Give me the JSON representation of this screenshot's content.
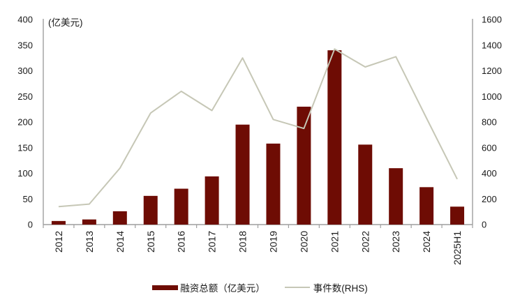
{
  "colors": {
    "bar": "#6e0c04",
    "line": "#c6c7b6",
    "axis": "#9e9e9e",
    "text": "#1a1a1a",
    "background": "#ffffff"
  },
  "chart_data": {
    "type": "combo_bar_line",
    "title": "",
    "categories": [
      "2012",
      "2013",
      "2014",
      "2015",
      "2016",
      "2017",
      "2018",
      "2019",
      "2020",
      "2021",
      "2022",
      "2023",
      "2024",
      "2025H1"
    ],
    "series": [
      {
        "name": "融资总额（亿美元）",
        "type": "bar",
        "axis": "left",
        "values": [
          7,
          10,
          26,
          56,
          70,
          94,
          195,
          158,
          230,
          340,
          156,
          110,
          73,
          35
        ]
      },
      {
        "name": "事件数(RHS)",
        "type": "line",
        "axis": "right",
        "values": [
          140,
          160,
          440,
          870,
          1040,
          890,
          1300,
          820,
          750,
          1370,
          1230,
          1310,
          830,
          355
        ]
      }
    ],
    "left_axis": {
      "title": "(亿美元)",
      "min": 0,
      "max": 400,
      "step": 50,
      "tick_labels": [
        "400",
        "350",
        "300",
        "250",
        "200",
        "150",
        "100",
        "50",
        "0"
      ]
    },
    "right_axis": {
      "min": 0,
      "max": 1600,
      "step": 200,
      "tick_labels": [
        "1600",
        "1400",
        "1200",
        "1000",
        "800",
        "600",
        "400",
        "200",
        "0"
      ]
    },
    "legend_position": "bottom",
    "grid": false
  }
}
